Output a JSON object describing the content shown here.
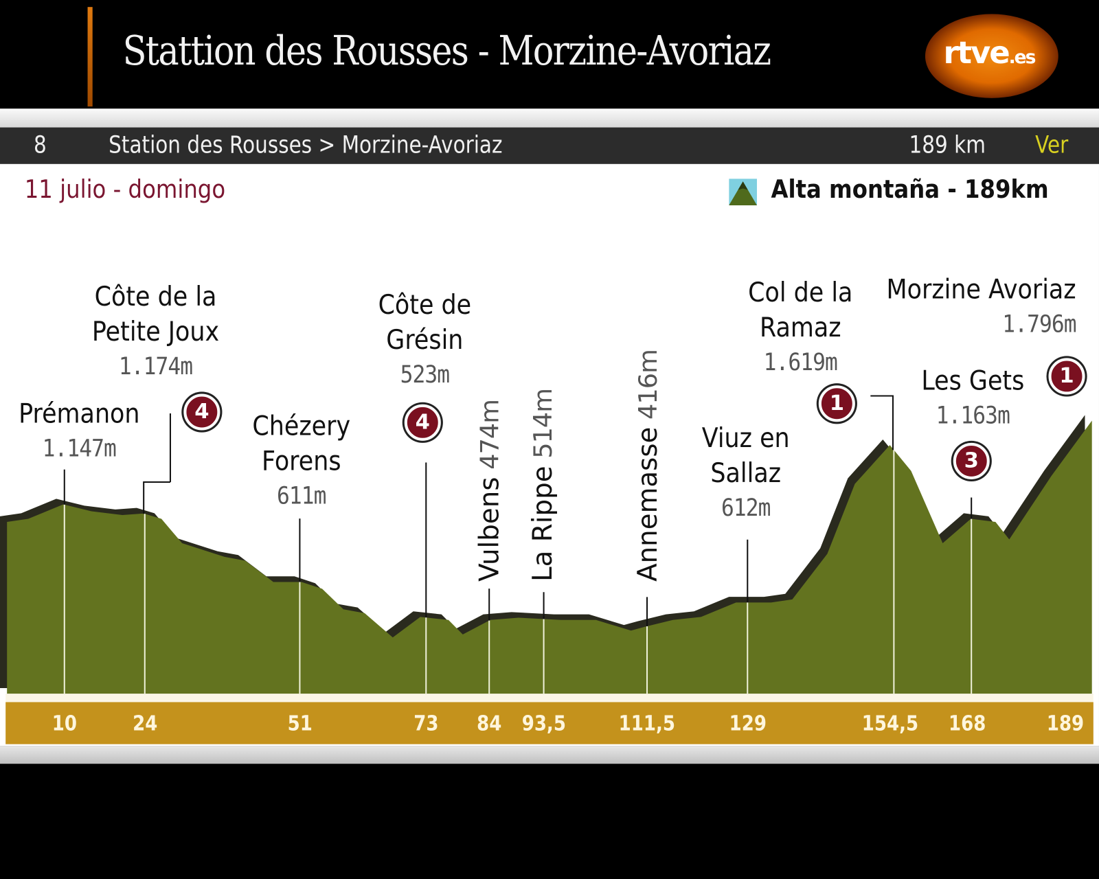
{
  "header": {
    "title": "Stattion des Rousses  - Morzine-Avoriaz",
    "logo": "rtve.es"
  },
  "stage_bar": {
    "number": "8",
    "route": "Station des Rousses > Morzine-Avoriaz",
    "distance": "189 km",
    "link": "Ver"
  },
  "date": "11 julio - domingo",
  "stage_type": {
    "icon": "mountain-icon",
    "label": "Alta montaña - 189km"
  },
  "colors": {
    "profile": "#63731f",
    "shadow": "#2a2a1e",
    "axis_bar": "#c4921c",
    "date": "#7a1530",
    "badge": "#7a1020",
    "link": "#d8d020"
  },
  "chart_data": {
    "type": "area",
    "xlabel": "",
    "ylabel": "",
    "x_unit": "km",
    "xlim": [
      0,
      189
    ],
    "x_ticks": [
      "10",
      "24",
      "51",
      "73",
      "84",
      "93,5",
      "111,5",
      "129",
      "154,5",
      "168",
      "189"
    ],
    "profile": [
      [
        0,
        1130
      ],
      [
        3.7,
        1150
      ],
      [
        9.8,
        1245
      ],
      [
        14.7,
        1200
      ],
      [
        20.1,
        1175
      ],
      [
        23.8,
        1185
      ],
      [
        26.9,
        1150
      ],
      [
        30.5,
        990
      ],
      [
        37.9,
        900
      ],
      [
        41.5,
        875
      ],
      [
        46.4,
        735
      ],
      [
        51.3,
        735
      ],
      [
        54.9,
        690
      ],
      [
        58.6,
        555
      ],
      [
        62.3,
        530
      ],
      [
        67.2,
        370
      ],
      [
        72,
        505
      ],
      [
        76.9,
        485
      ],
      [
        79.4,
        390
      ],
      [
        84.2,
        485
      ],
      [
        89.1,
        500
      ],
      [
        96.5,
        485
      ],
      [
        102.6,
        485
      ],
      [
        108.7,
        415
      ],
      [
        111.1,
        440
      ],
      [
        116,
        485
      ],
      [
        120.9,
        505
      ],
      [
        127,
        600
      ],
      [
        133.1,
        600
      ],
      [
        136.8,
        620
      ],
      [
        142.9,
        920
      ],
      [
        147.7,
        1380
      ],
      [
        153.8,
        1635
      ],
      [
        157.5,
        1465
      ],
      [
        163,
        990
      ],
      [
        167.9,
        1150
      ],
      [
        172.2,
        1130
      ],
      [
        174.6,
        1015
      ],
      [
        181.9,
        1430
      ],
      [
        189,
        1796
      ]
    ],
    "points": [
      {
        "km": 10,
        "name": [
          "Prémanon"
        ],
        "alt": "1.147m"
      },
      {
        "km": 24,
        "name": [
          "Côte de la",
          "Petite Joux"
        ],
        "alt": "1.174m",
        "category": "4"
      },
      {
        "km": 51,
        "name": [
          "Chézery",
          "Forens"
        ],
        "alt": "611m"
      },
      {
        "km": 73,
        "name": [
          "Côte de",
          "Grésin"
        ],
        "alt": "523m",
        "category": "4"
      },
      {
        "km": 84,
        "name": [
          "Vulbens"
        ],
        "alt": "474m"
      },
      {
        "km": 93.5,
        "name": [
          "La Rippe"
        ],
        "alt": "514m"
      },
      {
        "km": 111.5,
        "name": [
          "Annemasse"
        ],
        "alt": "416m"
      },
      {
        "km": 129,
        "name": [
          "Viuz en",
          "Sallaz"
        ],
        "alt": "612m"
      },
      {
        "km": 154.5,
        "name": [
          "Col de la",
          "Ramaz"
        ],
        "alt": "1.619m",
        "category": "1"
      },
      {
        "km": 168,
        "name": [
          "Les Gets"
        ],
        "alt": "1.163m",
        "category": "3"
      },
      {
        "km": 189,
        "name": [
          "Morzine Avoriaz"
        ],
        "alt": "1.796m",
        "category": "1"
      }
    ]
  }
}
